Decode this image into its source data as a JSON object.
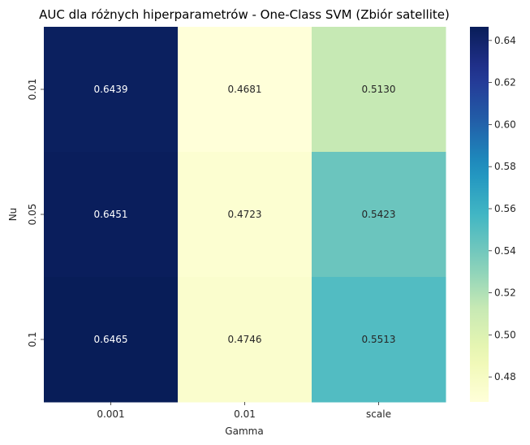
{
  "chart_data": {
    "type": "heatmap",
    "title": "AUC dla różnych hiperparametrów - One-Class SVM (Zbiór satellite)",
    "xlabel": "Gamma",
    "ylabel": "Nu",
    "x_categories": [
      "0.001",
      "0.01",
      "scale"
    ],
    "y_categories": [
      "0.01",
      "0.05",
      "0.1"
    ],
    "values": [
      [
        0.6439,
        0.4681,
        0.513
      ],
      [
        0.6451,
        0.4723,
        0.5423
      ],
      [
        0.6465,
        0.4746,
        0.5513
      ]
    ],
    "value_labels": [
      [
        "0.6439",
        "0.4681",
        "0.5130"
      ],
      [
        "0.6451",
        "0.4723",
        "0.5423"
      ],
      [
        "0.6465",
        "0.4746",
        "0.5513"
      ]
    ],
    "colormap": "YlGnBu",
    "vmin": 0.4681,
    "vmax": 0.6465,
    "colorbar_ticks": [
      0.48,
      0.5,
      0.52,
      0.54,
      0.56,
      0.58,
      0.6,
      0.62,
      0.64
    ],
    "colorbar_tick_labels": [
      "0.48",
      "0.50",
      "0.52",
      "0.54",
      "0.56",
      "0.58",
      "0.60",
      "0.62",
      "0.64"
    ]
  }
}
